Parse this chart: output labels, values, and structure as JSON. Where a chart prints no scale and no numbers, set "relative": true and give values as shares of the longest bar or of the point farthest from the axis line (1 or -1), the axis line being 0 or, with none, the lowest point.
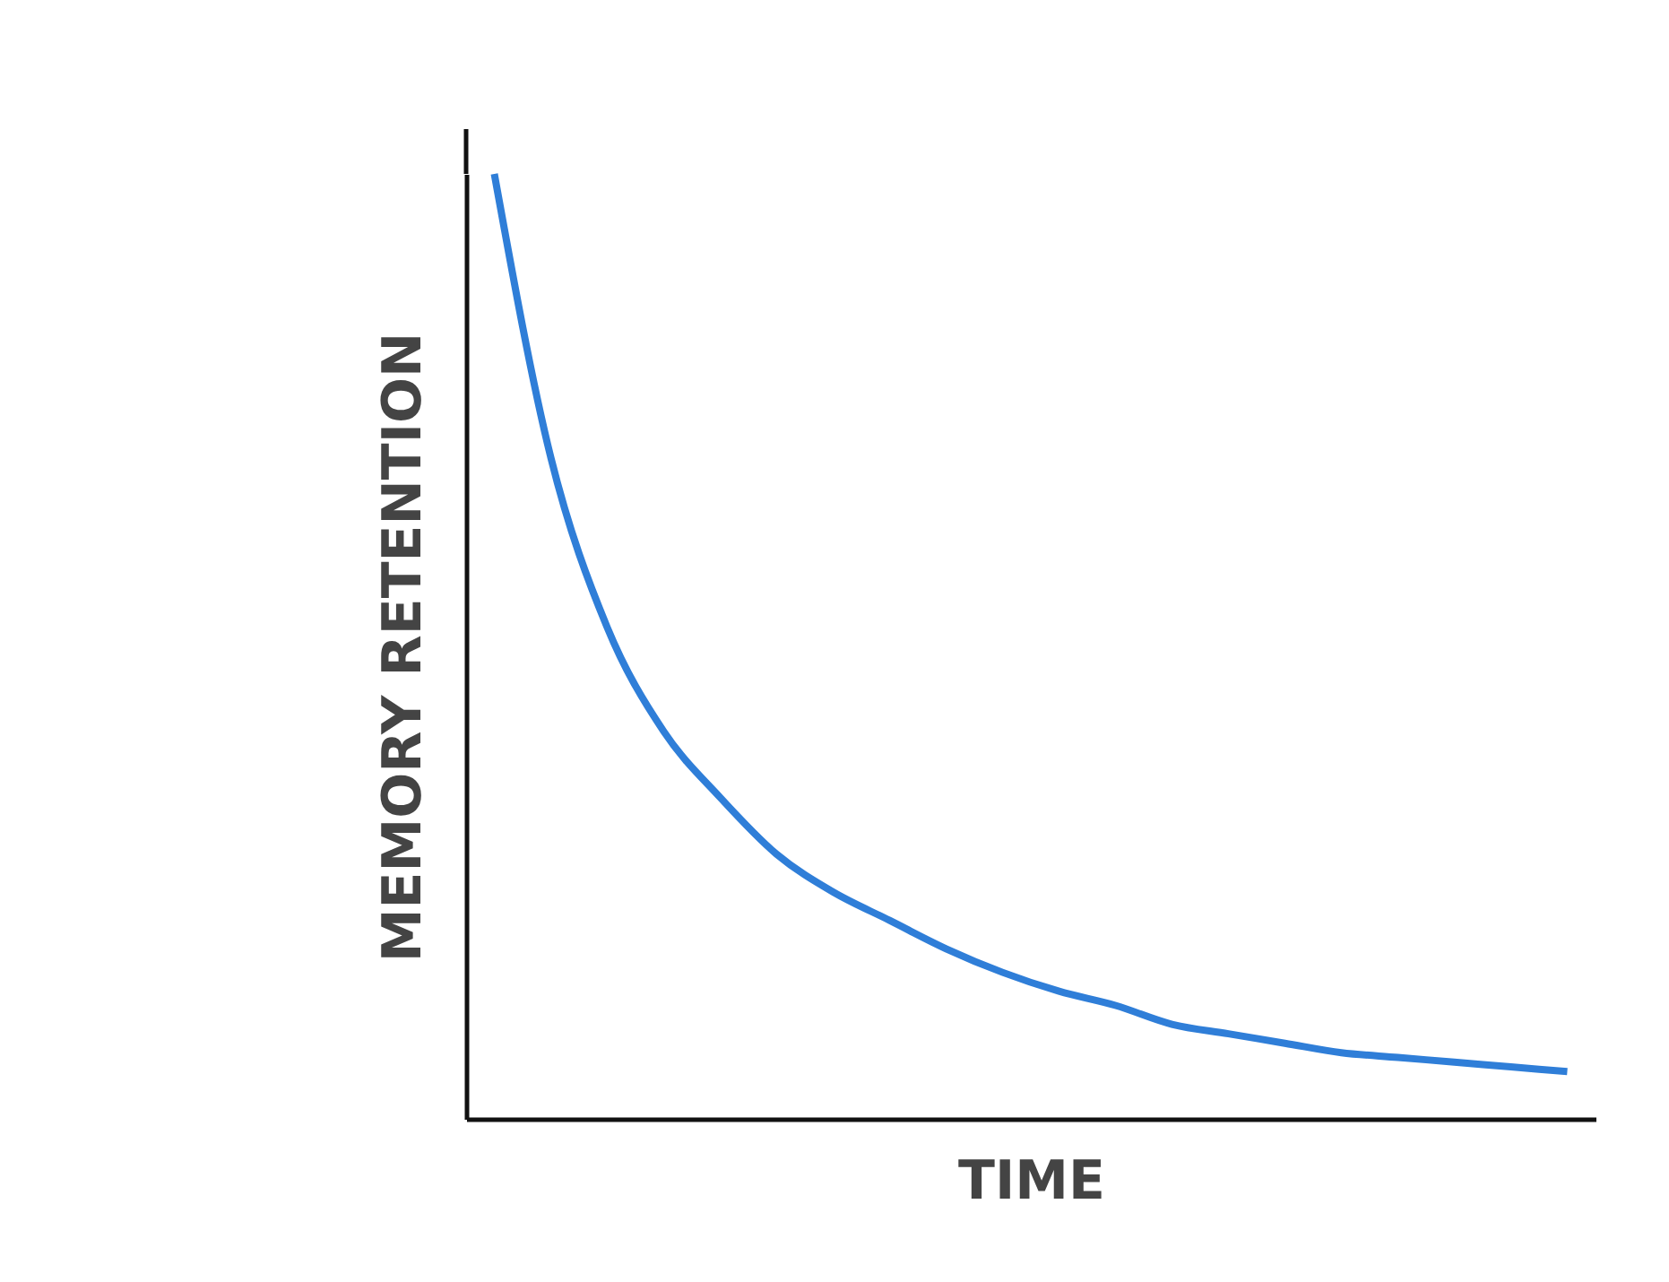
{
  "chart_data": {
    "type": "line",
    "relative": true,
    "xlabel": "TIME",
    "ylabel": "MEMORY RETENTION",
    "tick_labels": false,
    "color": "#2f7ed8",
    "categories": [
      null,
      null,
      null,
      null,
      null,
      null,
      null,
      null,
      null,
      null,
      null,
      null,
      null,
      null,
      null,
      null,
      null,
      null,
      null,
      null
    ],
    "values": [
      1.0,
      0.7,
      0.52,
      0.41,
      0.34,
      0.28,
      0.24,
      0.21,
      0.18,
      0.155,
      0.135,
      0.12,
      0.1,
      0.09,
      0.08,
      0.07,
      0.065,
      0.06,
      0.055,
      0.05
    ]
  }
}
